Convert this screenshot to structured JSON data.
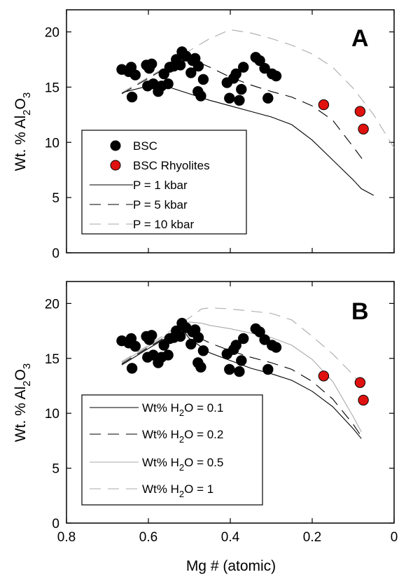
{
  "chart_data": [
    {
      "type": "scatter",
      "panel_label": "A",
      "xlabel": "",
      "ylabel": "Wt. % Al2O3",
      "ylabel_parts": {
        "main": "Wt. % Al",
        "sub1": "2",
        "mid": "O",
        "sub2": "3"
      },
      "xlim": [
        0.8,
        0
      ],
      "ylim": [
        0,
        22
      ],
      "xticks": [
        0.8,
        0.6,
        0.4,
        0.2,
        0
      ],
      "xtick_labels": [
        "",
        "",
        "",
        "",
        ""
      ],
      "yticks": [
        0,
        5,
        10,
        15,
        20
      ],
      "ytick_labels": [
        "0",
        "5",
        "10",
        "15",
        "20"
      ],
      "legend_position": "bottom-left",
      "points": [
        {
          "name": "BSC",
          "color": "#000000",
          "xy": [
            [
              0.665,
              16.6
            ],
            [
              0.648,
              16.4
            ],
            [
              0.642,
              16.8
            ],
            [
              0.632,
              16.1
            ],
            [
              0.64,
              14.1
            ],
            [
              0.605,
              17.0
            ],
            [
              0.592,
              17.1
            ],
            [
              0.598,
              16.7
            ],
            [
              0.602,
              15.1
            ],
            [
              0.588,
              15.3
            ],
            [
              0.576,
              14.6
            ],
            [
              0.568,
              15.1
            ],
            [
              0.562,
              16.2
            ],
            [
              0.552,
              15.3
            ],
            [
              0.548,
              16.8
            ],
            [
              0.538,
              16.9
            ],
            [
              0.532,
              17.5
            ],
            [
              0.522,
              17.0
            ],
            [
              0.518,
              18.2
            ],
            [
              0.508,
              17.8
            ],
            [
              0.496,
              16.3
            ],
            [
              0.492,
              17.4
            ],
            [
              0.486,
              17.6
            ],
            [
              0.479,
              14.6
            ],
            [
              0.472,
              14.2
            ],
            [
              0.466,
              15.7
            ],
            [
              0.478,
              16.9
            ],
            [
              0.408,
              15.4
            ],
            [
              0.402,
              14.0
            ],
            [
              0.392,
              15.8
            ],
            [
              0.378,
              13.8
            ],
            [
              0.373,
              14.8
            ],
            [
              0.386,
              16.2
            ],
            [
              0.368,
              16.8
            ],
            [
              0.338,
              17.7
            ],
            [
              0.328,
              17.4
            ],
            [
              0.316,
              16.7
            ],
            [
              0.308,
              14.0
            ],
            [
              0.298,
              16.2
            ],
            [
              0.288,
              16.0
            ]
          ]
        },
        {
          "name": "BSC Rhyolites",
          "color": "#e0120f",
          "xy": [
            [
              0.172,
              13.4
            ],
            [
              0.083,
              12.8
            ],
            [
              0.075,
              11.2
            ]
          ]
        }
      ],
      "series": [
        {
          "name": "P = 1 kbar",
          "style": "solid",
          "color": "#000000",
          "x": [
            0.665,
            0.6,
            0.55,
            0.5,
            0.45,
            0.4,
            0.35,
            0.3,
            0.25,
            0.2,
            0.15,
            0.1,
            0.08,
            0.05
          ],
          "y": [
            14.5,
            15.1,
            15.0,
            14.4,
            13.8,
            13.3,
            12.8,
            12.3,
            11.6,
            10.2,
            8.4,
            6.6,
            5.8,
            5.2
          ]
        },
        {
          "name": "P = 5 kbar",
          "style": "dashed",
          "color": "#000000",
          "x": [
            0.665,
            0.6,
            0.55,
            0.52,
            0.5,
            0.45,
            0.4,
            0.35,
            0.3,
            0.25,
            0.2,
            0.15,
            0.1,
            0.07
          ],
          "y": [
            14.4,
            15.8,
            16.9,
            17.8,
            17.6,
            16.8,
            15.9,
            15.2,
            14.6,
            14.1,
            13.3,
            12.0,
            9.6,
            8.1
          ]
        },
        {
          "name": "P = 10 kbar",
          "style": "dashed",
          "color": "#aaaaaa",
          "x": [
            0.665,
            0.6,
            0.55,
            0.5,
            0.45,
            0.4,
            0.35,
            0.3,
            0.25,
            0.2,
            0.15,
            0.1,
            0.05,
            0.0
          ],
          "y": [
            14.5,
            15.9,
            17.0,
            18.3,
            19.4,
            20.2,
            19.9,
            19.4,
            18.8,
            18.0,
            16.8,
            14.9,
            12.5,
            9.5
          ]
        }
      ]
    },
    {
      "type": "scatter",
      "panel_label": "B",
      "xlabel": "Mg # (atomic)",
      "ylabel": "Wt. % Al2O3",
      "ylabel_parts": {
        "main": "Wt. % Al",
        "sub1": "2",
        "mid": "O",
        "sub2": "3"
      },
      "xlim": [
        0.8,
        0
      ],
      "ylim": [
        0,
        22
      ],
      "xticks": [
        0.8,
        0.6,
        0.4,
        0.2,
        0
      ],
      "xtick_labels": [
        "0.8",
        "0.6",
        "0.4",
        "0.2",
        "0"
      ],
      "yticks": [
        0,
        5,
        10,
        15,
        20
      ],
      "ytick_labels": [
        "0",
        "5",
        "10",
        "15",
        "20"
      ],
      "legend_position": "bottom-left",
      "points": [
        {
          "name": "BSC",
          "color": "#000000",
          "xy": [
            [
              0.665,
              16.6
            ],
            [
              0.648,
              16.4
            ],
            [
              0.642,
              16.8
            ],
            [
              0.632,
              16.1
            ],
            [
              0.64,
              14.1
            ],
            [
              0.605,
              17.0
            ],
            [
              0.592,
              17.1
            ],
            [
              0.598,
              16.7
            ],
            [
              0.602,
              15.1
            ],
            [
              0.588,
              15.3
            ],
            [
              0.576,
              14.6
            ],
            [
              0.568,
              15.1
            ],
            [
              0.562,
              16.2
            ],
            [
              0.552,
              15.3
            ],
            [
              0.548,
              16.8
            ],
            [
              0.538,
              16.9
            ],
            [
              0.532,
              17.5
            ],
            [
              0.522,
              17.0
            ],
            [
              0.518,
              18.2
            ],
            [
              0.508,
              17.8
            ],
            [
              0.496,
              16.3
            ],
            [
              0.492,
              17.4
            ],
            [
              0.486,
              17.6
            ],
            [
              0.479,
              14.6
            ],
            [
              0.472,
              14.2
            ],
            [
              0.466,
              15.7
            ],
            [
              0.478,
              16.9
            ],
            [
              0.408,
              15.4
            ],
            [
              0.402,
              14.0
            ],
            [
              0.392,
              15.8
            ],
            [
              0.378,
              13.8
            ],
            [
              0.373,
              14.8
            ],
            [
              0.386,
              16.2
            ],
            [
              0.368,
              16.8
            ],
            [
              0.338,
              17.7
            ],
            [
              0.328,
              17.4
            ],
            [
              0.316,
              16.7
            ],
            [
              0.308,
              14.0
            ],
            [
              0.298,
              16.2
            ],
            [
              0.288,
              16.0
            ]
          ]
        },
        {
          "name": "BSC Rhyolites",
          "color": "#e0120f",
          "xy": [
            [
              0.172,
              13.4
            ],
            [
              0.083,
              12.8
            ],
            [
              0.075,
              11.2
            ]
          ]
        }
      ],
      "series": [
        {
          "name": "Wt% H2O = 0.1",
          "name_parts": {
            "pre": "Wt% H",
            "sub": "2",
            "post": "O = 0.1"
          },
          "style": "solid",
          "color": "#000000",
          "x": [
            0.665,
            0.6,
            0.55,
            0.52,
            0.5,
            0.45,
            0.4,
            0.35,
            0.3,
            0.25,
            0.2,
            0.15,
            0.1,
            0.08
          ],
          "y": [
            14.4,
            15.9,
            17.0,
            17.8,
            16.8,
            15.5,
            14.8,
            14.1,
            13.6,
            13.0,
            12.0,
            10.6,
            8.6,
            7.7
          ]
        },
        {
          "name": "Wt% H2O = 0.2",
          "name_parts": {
            "pre": "Wt% H",
            "sub": "2",
            "post": "O = 0.2"
          },
          "style": "dashed",
          "color": "#000000",
          "x": [
            0.665,
            0.6,
            0.55,
            0.52,
            0.5,
            0.45,
            0.4,
            0.35,
            0.3,
            0.25,
            0.2,
            0.15,
            0.1,
            0.08
          ],
          "y": [
            14.5,
            16.0,
            17.1,
            17.9,
            17.3,
            16.4,
            15.7,
            15.1,
            14.6,
            14.0,
            12.9,
            11.3,
            9.0,
            7.9
          ]
        },
        {
          "name": "Wt% H2O = 0.5",
          "name_parts": {
            "pre": "Wt% H",
            "sub": "2",
            "post": "O = 0.5"
          },
          "style": "solid",
          "color": "#aaaaaa",
          "x": [
            0.665,
            0.6,
            0.55,
            0.5,
            0.47,
            0.45,
            0.4,
            0.35,
            0.3,
            0.25,
            0.2,
            0.15,
            0.1,
            0.08
          ],
          "y": [
            14.6,
            16.1,
            17.2,
            18.3,
            18.2,
            18.0,
            17.7,
            17.3,
            16.9,
            16.2,
            14.9,
            12.9,
            9.7,
            8.3
          ]
        },
        {
          "name": "Wt% H2O = 1",
          "name_parts": {
            "pre": "Wt% H",
            "sub": "2",
            "post": "O = 1"
          },
          "style": "dashed",
          "color": "#aaaaaa",
          "x": [
            0.665,
            0.6,
            0.55,
            0.5,
            0.47,
            0.45,
            0.4,
            0.35,
            0.3,
            0.25,
            0.2,
            0.15,
            0.1,
            0.08
          ],
          "y": [
            14.7,
            16.2,
            17.4,
            18.7,
            19.5,
            19.6,
            19.5,
            19.3,
            19.1,
            18.5,
            17.0,
            15.4,
            13.5,
            12.6
          ]
        }
      ]
    }
  ]
}
